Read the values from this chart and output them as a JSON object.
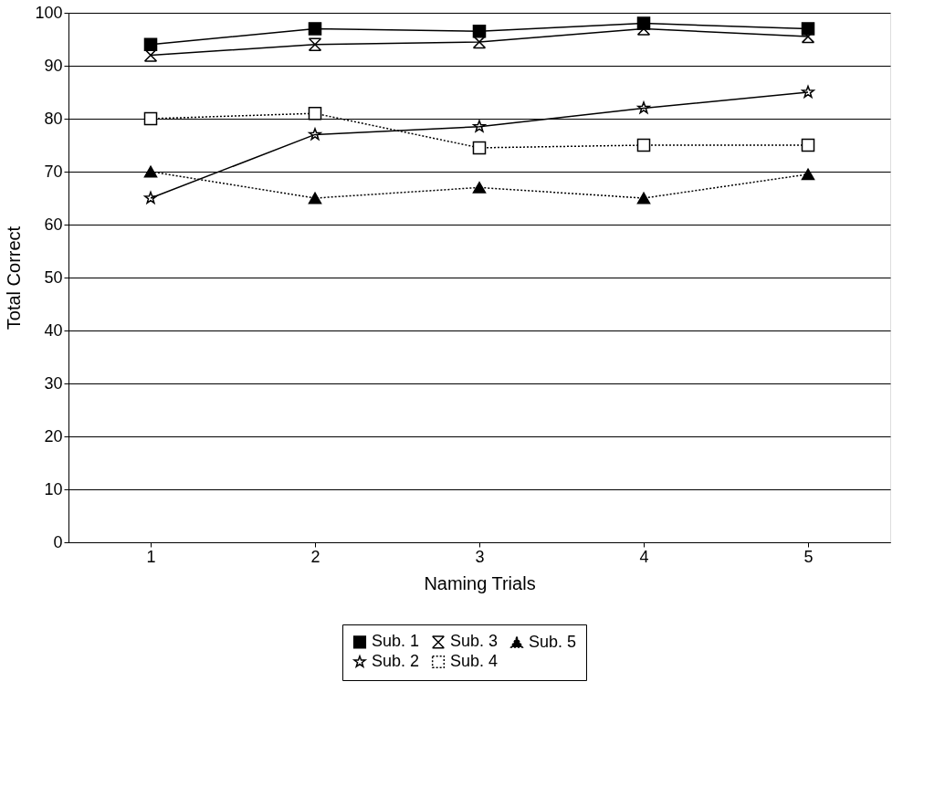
{
  "chart_data": {
    "type": "line",
    "xlabel": "Naming Trials",
    "ylabel": "Total Correct",
    "x": [
      1,
      2,
      3,
      4,
      5
    ],
    "xlim": [
      0.5,
      5.5
    ],
    "xticks": [
      1,
      2,
      3,
      4,
      5
    ],
    "ylim": [
      0,
      100
    ],
    "yticks": [
      0,
      10,
      20,
      30,
      40,
      50,
      60,
      70,
      80,
      90,
      100
    ],
    "grid": "y",
    "legend": "bottom",
    "series": [
      {
        "name": "Sub. 1",
        "color": "#000000",
        "marker": "square",
        "line_style": "solid",
        "values": [
          94,
          97,
          96.5,
          98,
          97
        ]
      },
      {
        "name": "Sub. 2",
        "color": "#000000",
        "marker": "star",
        "line_style": "solid",
        "values": [
          65,
          77,
          78.5,
          82,
          85
        ]
      },
      {
        "name": "Sub. 3",
        "color": "#000000",
        "marker": "cross",
        "line_style": "solid",
        "values": [
          92,
          94,
          94.5,
          97,
          95.5
        ]
      },
      {
        "name": "Sub. 4",
        "color": "#000000",
        "marker": "square",
        "line_style": "dotted",
        "values": [
          80,
          81,
          74.5,
          75,
          75
        ]
      },
      {
        "name": "Sub. 5",
        "color": "#000000",
        "marker": "triangle",
        "line_style": "dotted",
        "values": [
          70,
          65,
          67,
          65,
          69.5
        ]
      }
    ]
  }
}
